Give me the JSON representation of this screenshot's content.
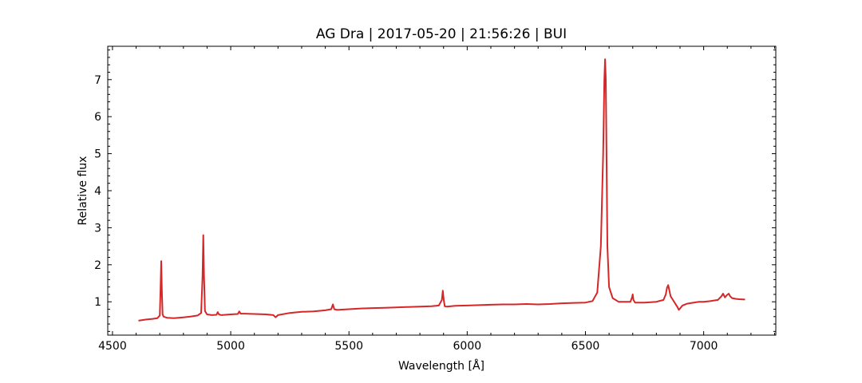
{
  "chart_data": {
    "type": "line",
    "title": "AG Dra | 2017-05-20 | 21:56:26 | BUI",
    "xlabel": "Wavelength [Å]",
    "ylabel": "Relative flux",
    "xlim": [
      4480,
      7305
    ],
    "ylim": [
      0.1,
      7.9
    ],
    "xticks": [
      4500,
      5000,
      5500,
      6000,
      6500,
      7000
    ],
    "yticks": [
      1,
      2,
      3,
      4,
      5,
      6,
      7
    ],
    "grid": false,
    "line_color": "#d62728",
    "series": [
      {
        "x": [
          4610,
          4640,
          4670,
          4690,
          4700,
          4703,
          4706,
          4709,
          4712,
          4716,
          4730,
          4760,
          4800,
          4830,
          4860,
          4875,
          4881,
          4884,
          4887,
          4891,
          4900,
          4920,
          4940,
          4945,
          4950,
          4960,
          5000,
          5030,
          5036,
          5042,
          5060,
          5100,
          5150,
          5180,
          5190,
          5200,
          5250,
          5300,
          5350,
          5400,
          5425,
          5432,
          5438,
          5445,
          5450,
          5500,
          5550,
          5600,
          5650,
          5700,
          5750,
          5800,
          5850,
          5880,
          5893,
          5897,
          5901,
          5905,
          5915,
          5950,
          6000,
          6050,
          6100,
          6150,
          6200,
          6250,
          6300,
          6350,
          6400,
          6450,
          6500,
          6530,
          6550,
          6565,
          6575,
          6580,
          6583,
          6586,
          6589,
          6593,
          6600,
          6615,
          6640,
          6690,
          6697,
          6700,
          6703,
          6710,
          6750,
          6800,
          6830,
          6840,
          6845,
          6850,
          6855,
          6860,
          6870,
          6880,
          6890,
          6895,
          6900,
          6910,
          6930,
          6950,
          6980,
          7000,
          7030,
          7060,
          7075,
          7082,
          7090,
          7098,
          7106,
          7112,
          7120,
          7135,
          7150,
          7175
        ],
        "y": [
          0.49,
          0.52,
          0.54,
          0.56,
          0.63,
          1.3,
          2.1,
          1.3,
          0.66,
          0.6,
          0.57,
          0.56,
          0.58,
          0.6,
          0.63,
          0.7,
          1.7,
          2.8,
          1.7,
          0.75,
          0.66,
          0.64,
          0.65,
          0.72,
          0.66,
          0.64,
          0.66,
          0.67,
          0.74,
          0.68,
          0.68,
          0.67,
          0.66,
          0.64,
          0.58,
          0.64,
          0.7,
          0.73,
          0.74,
          0.77,
          0.8,
          0.93,
          0.8,
          0.79,
          0.78,
          0.8,
          0.82,
          0.83,
          0.84,
          0.85,
          0.86,
          0.87,
          0.88,
          0.9,
          1.05,
          1.3,
          1.05,
          0.88,
          0.87,
          0.89,
          0.9,
          0.91,
          0.92,
          0.93,
          0.93,
          0.94,
          0.93,
          0.94,
          0.96,
          0.97,
          0.98,
          1.02,
          1.25,
          2.5,
          5.0,
          7.0,
          7.55,
          7.0,
          5.0,
          2.5,
          1.4,
          1.1,
          1.0,
          1.0,
          1.12,
          1.2,
          1.05,
          0.98,
          0.98,
          1.0,
          1.05,
          1.2,
          1.38,
          1.45,
          1.3,
          1.15,
          1.05,
          0.95,
          0.85,
          0.78,
          0.82,
          0.9,
          0.95,
          0.97,
          1.0,
          1.0,
          1.02,
          1.05,
          1.15,
          1.22,
          1.12,
          1.18,
          1.22,
          1.15,
          1.1,
          1.08,
          1.07,
          1.06
        ]
      }
    ]
  }
}
